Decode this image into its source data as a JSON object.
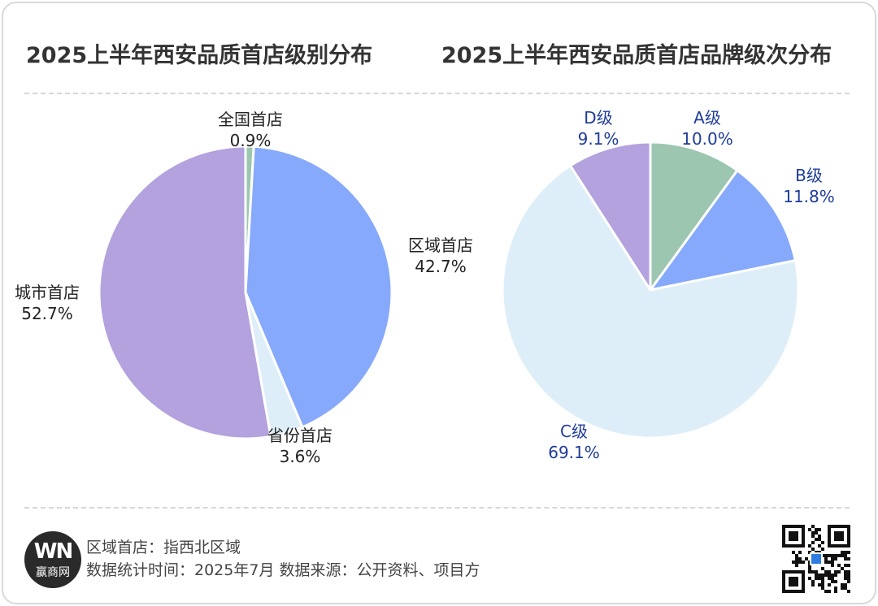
{
  "titles": {
    "left": "2025上半年西安品质首店级别分布",
    "right": "2025上半年西安品质首店品牌级次分布"
  },
  "chart_data": [
    {
      "type": "pie",
      "title": "2025上半年西安品质首店级别分布",
      "start": "12 o'clock",
      "direction": "clockwise",
      "slices": [
        {
          "label": "全国首店",
          "value": 0.9,
          "display": "0.9%",
          "color": "#9dc6b1"
        },
        {
          "label": "区域首店",
          "value": 42.7,
          "display": "42.7%",
          "color": "#86a9fc"
        },
        {
          "label": "省份首店",
          "value": 3.6,
          "display": "3.6%",
          "color": "#deeef9"
        },
        {
          "label": "城市首店",
          "value": 52.7,
          "display": "52.7%",
          "color": "#b3a2de"
        }
      ],
      "label_color": "#222222"
    },
    {
      "type": "pie",
      "title": "2025上半年西安品质首店品牌级次分布",
      "start": "12 o'clock",
      "direction": "clockwise",
      "slices": [
        {
          "label": "A级",
          "value": 10.0,
          "display": "10.0%",
          "color": "#9dc6b1"
        },
        {
          "label": "B级",
          "value": 11.8,
          "display": "11.8%",
          "color": "#86a9fc"
        },
        {
          "label": "C级",
          "value": 69.1,
          "display": "69.1%",
          "color": "#deeef9"
        },
        {
          "label": "D级",
          "value": 9.1,
          "display": "9.1%",
          "color": "#b3a2de"
        }
      ],
      "label_color": "#1f3c99"
    }
  ],
  "footer": {
    "note": "区域首店：指西北区域",
    "meta": "数据统计时间：2025年7月 数据来源：公开资料、项目方"
  },
  "logo": {
    "mark": "WN",
    "brand": "赢商网",
    "mark_color": "#e53935",
    "bg_color": "#2a2a2a"
  },
  "qr": {
    "icon": "qr-code-icon"
  }
}
